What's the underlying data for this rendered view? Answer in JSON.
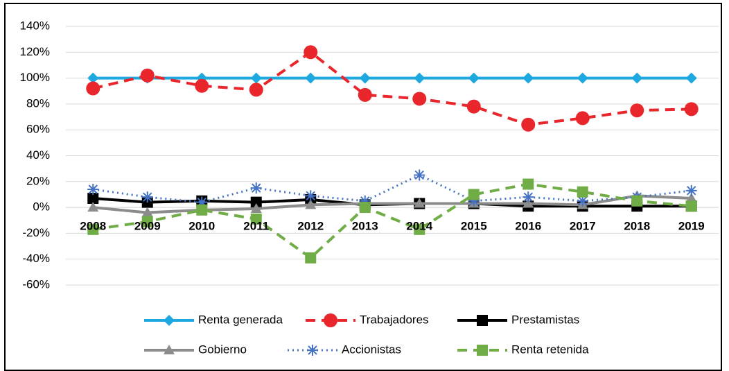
{
  "chart_data": {
    "type": "line",
    "categories": [
      "2008",
      "2009",
      "2010",
      "2011",
      "2012",
      "2013",
      "2014",
      "2015",
      "2016",
      "2017",
      "2018",
      "2019"
    ],
    "series": [
      {
        "name": "Renta generada",
        "color": "#1ea8e0",
        "marker": "diamond",
        "dash": "solid",
        "values": [
          100,
          100,
          100,
          100,
          100,
          100,
          100,
          100,
          100,
          100,
          100,
          100
        ]
      },
      {
        "name": "Trabajadores",
        "color": "#e8262b",
        "marker": "circle",
        "dash": "dash",
        "values": [
          92,
          102,
          94,
          91,
          120,
          87,
          84,
          78,
          64,
          69,
          75,
          76
        ]
      },
      {
        "name": "Prestamistas",
        "color": "#000000",
        "marker": "square",
        "dash": "solid",
        "values": [
          7,
          4,
          5,
          4,
          6,
          2,
          3,
          3,
          1,
          1,
          1,
          1
        ]
      },
      {
        "name": "Gobierno",
        "color": "#8c8c8c",
        "marker": "triangle",
        "dash": "solid",
        "values": [
          0,
          -4,
          -2,
          -1,
          2,
          3,
          3,
          3,
          3,
          2,
          9,
          7
        ]
      },
      {
        "name": "Accionistas",
        "color": "#4472c4",
        "marker": "star",
        "dash": "dot",
        "values": [
          14,
          8,
          4,
          15,
          9,
          5,
          25,
          5,
          8,
          5,
          8,
          13
        ]
      },
      {
        "name": "Renta retenida",
        "color": "#70ad47",
        "marker": "square",
        "dash": "dash",
        "values": [
          -17,
          -11,
          -2,
          -9,
          -39,
          0,
          -17,
          10,
          18,
          12,
          5,
          1
        ]
      }
    ],
    "ylim": [
      -60,
      140
    ],
    "yticks": [
      {
        "value": -60,
        "label": "-60%"
      },
      {
        "value": -40,
        "label": "-40%"
      },
      {
        "value": -20,
        "label": "-20%"
      },
      {
        "value": 0,
        "label": "0%"
      },
      {
        "value": 20,
        "label": "20%"
      },
      {
        "value": 40,
        "label": "40%"
      },
      {
        "value": 60,
        "label": "60%"
      },
      {
        "value": 80,
        "label": "80%"
      },
      {
        "value": 100,
        "label": "100%"
      },
      {
        "value": 120,
        "label": "120%"
      },
      {
        "value": 140,
        "label": "140%"
      }
    ],
    "grid": true,
    "legend": "bottom"
  }
}
